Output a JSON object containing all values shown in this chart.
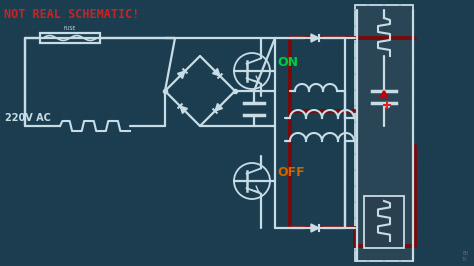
{
  "bg_color": "#1b3d4f",
  "grid_color": "#1e4a5e",
  "wire_color": "#c8dce6",
  "red_wire_color": "#7a0a0a",
  "title": "NOT REAL SCHEMATIC!",
  "title_color": "#cc2222",
  "label_220v": "220V AC",
  "label_on": "ON",
  "label_off": "OFF",
  "label_fuse": "FUSE",
  "on_color": "#00cc44",
  "off_color": "#cc6600",
  "wire_lw": 1.6,
  "red_lw": 2.8,
  "panel_color": "#2a4050",
  "panel2_color": "#3a5060"
}
